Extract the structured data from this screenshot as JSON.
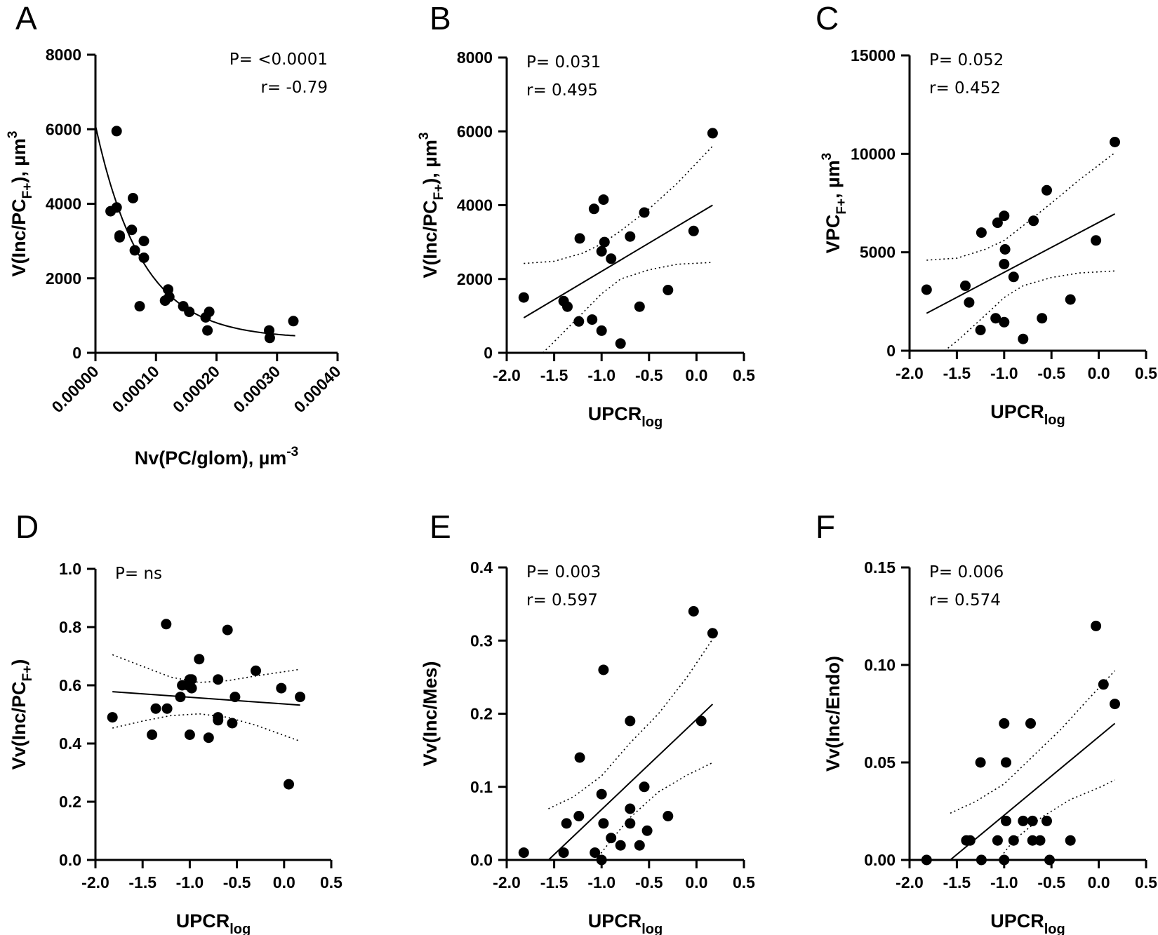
{
  "chart_data": [
    {
      "panel": "A",
      "type": "scatter",
      "xlabel": "Nv(PC/glom), µm",
      "xlabel_sup": "-3",
      "ylabel": "V(Inc/PC",
      "ylabel_sub": "F+",
      "ylabel_tail": "), µm",
      "ylabel_sup": "3",
      "xlim": [
        0,
        0.0004
      ],
      "ylim": [
        0,
        8000
      ],
      "xticks": [
        0,
        0.0001,
        0.0002,
        0.0003,
        0.0004
      ],
      "xtick_labels": [
        "0.00000",
        "0.00010",
        "0.00020",
        "0.00030",
        "0.00040"
      ],
      "yticks": [
        0,
        2000,
        4000,
        6000,
        8000
      ],
      "ytick_labels": [
        "0",
        "2000",
        "4000",
        "6000",
        "8000"
      ],
      "stats": [
        "P= <0.0001",
        "r= -0.79"
      ],
      "stats_align": "right",
      "points": [
        [
          3.5e-05,
          5950
        ],
        [
          2.5e-05,
          3800
        ],
        [
          3.5e-05,
          3900
        ],
        [
          4e-05,
          3150
        ],
        [
          4e-05,
          3100
        ],
        [
          6.2e-05,
          4150
        ],
        [
          6e-05,
          3300
        ],
        [
          6.5e-05,
          2750
        ],
        [
          8e-05,
          3000
        ],
        [
          8e-05,
          2550
        ],
        [
          7.3e-05,
          1250
        ],
        [
          0.00012,
          1700
        ],
        [
          0.000115,
          1400
        ],
        [
          0.000122,
          1500
        ],
        [
          0.000145,
          1250
        ],
        [
          0.000155,
          1100
        ],
        [
          0.000182,
          950
        ],
        [
          0.000188,
          1100
        ],
        [
          0.000185,
          600
        ],
        [
          0.000287,
          600
        ],
        [
          0.000288,
          400
        ],
        [
          0.000327,
          850
        ]
      ],
      "fit": {
        "kind": "exp_decay",
        "y0": 6100,
        "plateau": 380,
        "k": 13000,
        "x_end": 0.00033
      }
    },
    {
      "panel": "B",
      "type": "scatter",
      "xlabel": "UPCR",
      "xlabel_sub": "log",
      "ylabel": "V(Inc/PC",
      "ylabel_sub": "F+",
      "ylabel_tail": "), µm",
      "ylabel_sup": "3",
      "xlim": [
        -2.0,
        0.5
      ],
      "ylim": [
        0,
        8000
      ],
      "xticks": [
        -2.0,
        -1.5,
        -1.0,
        -0.5,
        0.0,
        0.5
      ],
      "xtick_labels": [
        "-2.0",
        "-1.5",
        "-1.0",
        "-0.5",
        "0.0",
        "0.5"
      ],
      "yticks": [
        0,
        2000,
        4000,
        6000,
        8000
      ],
      "ytick_labels": [
        "0",
        "2000",
        "4000",
        "6000",
        "8000"
      ],
      "stats": [
        "P= 0.031",
        "r= 0.495"
      ],
      "stats_align": "left",
      "points": [
        [
          -1.82,
          1500
        ],
        [
          -1.4,
          1400
        ],
        [
          -1.36,
          1250
        ],
        [
          -1.23,
          3100
        ],
        [
          -1.24,
          850
        ],
        [
          -1.08,
          3900
        ],
        [
          -1.1,
          900
        ],
        [
          -1.0,
          2750
        ],
        [
          -0.98,
          4150
        ],
        [
          -0.97,
          3000
        ],
        [
          -1.0,
          600
        ],
        [
          -0.9,
          2550
        ],
        [
          -0.8,
          250
        ],
        [
          -0.7,
          3150
        ],
        [
          -0.6,
          1250
        ],
        [
          -0.55,
          3800
        ],
        [
          -0.3,
          1700
        ],
        [
          -0.03,
          3300
        ],
        [
          0.17,
          5950
        ]
      ],
      "fit": {
        "x": [
          -1.82,
          0.17
        ],
        "y": [
          950,
          4000
        ]
      },
      "ci_upper": [
        [
          -1.82,
          2420
        ],
        [
          -1.5,
          2480
        ],
        [
          -1.2,
          2700
        ],
        [
          -1.0,
          2950
        ],
        [
          -0.8,
          3300
        ],
        [
          -0.5,
          3900
        ],
        [
          -0.2,
          4600
        ],
        [
          0.17,
          5600
        ]
      ],
      "ci_lower": [
        [
          -1.62,
          0
        ],
        [
          -1.5,
          300
        ],
        [
          -1.2,
          1080
        ],
        [
          -1.0,
          1600
        ],
        [
          -0.8,
          2000
        ],
        [
          -0.5,
          2250
        ],
        [
          -0.2,
          2400
        ],
        [
          0.17,
          2450
        ]
      ]
    },
    {
      "panel": "C",
      "type": "scatter",
      "xlabel": "UPCR",
      "xlabel_sub": "log",
      "ylabel": "VPC",
      "ylabel_sub": "F+",
      "ylabel_tail": ", µm",
      "ylabel_sup": "3",
      "xlim": [
        -2.0,
        0.5
      ],
      "ylim": [
        0,
        15000
      ],
      "xticks": [
        -2.0,
        -1.5,
        -1.0,
        -0.5,
        0.0,
        0.5
      ],
      "xtick_labels": [
        "-2.0",
        "-1.5",
        "-1.0",
        "-0.5",
        "0.0",
        "0.5"
      ],
      "yticks": [
        0,
        5000,
        10000,
        15000
      ],
      "ytick_labels": [
        "0",
        "5000",
        "10000",
        "15000"
      ],
      "stats": [
        "P= 0.052",
        "r= 0.452"
      ],
      "stats_align": "left",
      "points": [
        [
          -1.82,
          3100
        ],
        [
          -1.41,
          3300
        ],
        [
          -1.37,
          2450
        ],
        [
          -1.24,
          6000
        ],
        [
          -1.25,
          1050
        ],
        [
          -1.07,
          6500
        ],
        [
          -1.09,
          1650
        ],
        [
          -1.0,
          6850
        ],
        [
          -0.99,
          5150
        ],
        [
          -1.0,
          4400
        ],
        [
          -1.0,
          1450
        ],
        [
          -0.9,
          3750
        ],
        [
          -0.8,
          600
        ],
        [
          -0.69,
          6600
        ],
        [
          -0.6,
          1650
        ],
        [
          -0.55,
          8150
        ],
        [
          -0.3,
          2600
        ],
        [
          -0.03,
          5600
        ],
        [
          0.17,
          10600
        ]
      ],
      "fit": {
        "x": [
          -1.82,
          0.17
        ],
        "y": [
          1900,
          6950
        ]
      },
      "ci_upper": [
        [
          -1.82,
          4600
        ],
        [
          -1.5,
          4700
        ],
        [
          -1.2,
          5150
        ],
        [
          -1.0,
          5600
        ],
        [
          -0.8,
          6350
        ],
        [
          -0.5,
          7500
        ],
        [
          -0.2,
          8700
        ],
        [
          0.17,
          10050
        ]
      ],
      "ci_lower": [
        [
          -1.63,
          0
        ],
        [
          -1.5,
          480
        ],
        [
          -1.2,
          1800
        ],
        [
          -1.0,
          2700
        ],
        [
          -0.8,
          3300
        ],
        [
          -0.5,
          3720
        ],
        [
          -0.2,
          3950
        ],
        [
          0.17,
          4050
        ]
      ]
    },
    {
      "panel": "D",
      "type": "scatter",
      "xlabel": "UPCR",
      "xlabel_sub": "log",
      "ylabel": "Vv(Inc/PC",
      "ylabel_sub": "F+",
      "ylabel_tail": ")",
      "ylabel_sup": "",
      "xlim": [
        -2.0,
        0.5
      ],
      "ylim": [
        0,
        1.0
      ],
      "xticks": [
        -2.0,
        -1.5,
        -1.0,
        -0.5,
        0.0,
        0.5
      ],
      "xtick_labels": [
        "-2.0",
        "-1.5",
        "-1.0",
        "-0.5",
        "0.0",
        "0.5"
      ],
      "yticks": [
        0,
        0.2,
        0.4,
        0.6,
        0.8,
        1.0
      ],
      "ytick_labels": [
        "0.0",
        "0.2",
        "0.4",
        "0.6",
        "0.8",
        "1.0"
      ],
      "stats": [
        "P= ns"
      ],
      "stats_align": "left",
      "points": [
        [
          -1.82,
          0.49
        ],
        [
          -1.4,
          0.43
        ],
        [
          -1.36,
          0.52
        ],
        [
          -1.25,
          0.81
        ],
        [
          -1.24,
          0.52
        ],
        [
          -1.1,
          0.56
        ],
        [
          -1.08,
          0.6
        ],
        [
          -1.02,
          0.6
        ],
        [
          -1.0,
          0.62
        ],
        [
          -0.98,
          0.62
        ],
        [
          -0.98,
          0.59
        ],
        [
          -1.0,
          0.43
        ],
        [
          -0.9,
          0.69
        ],
        [
          -0.8,
          0.42
        ],
        [
          -0.7,
          0.62
        ],
        [
          -0.7,
          0.49
        ],
        [
          -0.7,
          0.48
        ],
        [
          -0.6,
          0.79
        ],
        [
          -0.55,
          0.47
        ],
        [
          -0.52,
          0.56
        ],
        [
          -0.3,
          0.65
        ],
        [
          -0.03,
          0.59
        ],
        [
          0.05,
          0.26
        ],
        [
          0.17,
          0.56
        ]
      ],
      "fit": {
        "x": [
          -1.82,
          0.17
        ],
        "y": [
          0.578,
          0.532
        ]
      },
      "ci_upper": [
        [
          -1.82,
          0.705
        ],
        [
          -1.5,
          0.665
        ],
        [
          -1.2,
          0.628
        ],
        [
          -0.9,
          0.61
        ],
        [
          -0.6,
          0.616
        ],
        [
          -0.3,
          0.632
        ],
        [
          0.17,
          0.655
        ]
      ],
      "ci_lower": [
        [
          -1.82,
          0.453
        ],
        [
          -1.5,
          0.477
        ],
        [
          -1.2,
          0.496
        ],
        [
          -0.9,
          0.502
        ],
        [
          -0.6,
          0.49
        ],
        [
          -0.3,
          0.463
        ],
        [
          0.17,
          0.408
        ]
      ]
    },
    {
      "panel": "E",
      "type": "scatter",
      "xlabel": "UPCR",
      "xlabel_sub": "log",
      "ylabel": "Vv(Inc/Mes)",
      "ylabel_sub": "",
      "ylabel_tail": "",
      "ylabel_sup": "",
      "xlim": [
        -2.0,
        0.5
      ],
      "ylim": [
        0,
        0.4
      ],
      "xticks": [
        -2.0,
        -1.5,
        -1.0,
        -0.5,
        0.0,
        0.5
      ],
      "xtick_labels": [
        "-2.0",
        "-1.5",
        "-1.0",
        "-0.5",
        "0.0",
        "0.5"
      ],
      "yticks": [
        0,
        0.1,
        0.2,
        0.3,
        0.4
      ],
      "ytick_labels": [
        "0.0",
        "0.1",
        "0.2",
        "0.3",
        "0.4"
      ],
      "stats": [
        "P= 0.003",
        "r= 0.597"
      ],
      "stats_align": "left",
      "points": [
        [
          -1.82,
          0.01
        ],
        [
          -1.4,
          0.01
        ],
        [
          -1.37,
          0.05
        ],
        [
          -1.24,
          0.06
        ],
        [
          -1.23,
          0.14
        ],
        [
          -1.07,
          0.01
        ],
        [
          -1.0,
          0.09
        ],
        [
          -0.98,
          0.26
        ],
        [
          -0.98,
          0.05
        ],
        [
          -1.0,
          0.0
        ],
        [
          -0.9,
          0.03
        ],
        [
          -0.8,
          0.02
        ],
        [
          -0.7,
          0.07
        ],
        [
          -0.7,
          0.05
        ],
        [
          -0.7,
          0.19
        ],
        [
          -0.6,
          0.02
        ],
        [
          -0.55,
          0.1
        ],
        [
          -0.52,
          0.04
        ],
        [
          -0.3,
          0.06
        ],
        [
          -0.03,
          0.34
        ],
        [
          0.05,
          0.19
        ],
        [
          0.17,
          0.31
        ]
      ],
      "fit": {
        "x": [
          -1.56,
          0.17
        ],
        "y": [
          0.0,
          0.213
        ]
      },
      "ci_upper": [
        [
          -1.56,
          0.07
        ],
        [
          -1.3,
          0.086
        ],
        [
          -1.0,
          0.115
        ],
        [
          -0.7,
          0.16
        ],
        [
          -0.4,
          0.2
        ],
        [
          -0.1,
          0.25
        ],
        [
          0.17,
          0.302
        ]
      ],
      "ci_lower": [
        [
          -1.06,
          0.0
        ],
        [
          -0.9,
          0.027
        ],
        [
          -0.7,
          0.058
        ],
        [
          -0.4,
          0.093
        ],
        [
          -0.1,
          0.116
        ],
        [
          0.17,
          0.133
        ]
      ]
    },
    {
      "panel": "F",
      "type": "scatter",
      "xlabel": "UPCR",
      "xlabel_sub": "log",
      "ylabel": "Vv(Inc/Endo)",
      "ylabel_sub": "",
      "ylabel_tail": "",
      "ylabel_sup": "",
      "xlim": [
        -2.0,
        0.5
      ],
      "ylim": [
        0,
        0.15
      ],
      "xticks": [
        -2.0,
        -1.5,
        -1.0,
        -0.5,
        0.0,
        0.5
      ],
      "xtick_labels": [
        "-2.0",
        "-1.5",
        "-1.0",
        "-0.5",
        "0.0",
        "0.5"
      ],
      "yticks": [
        0,
        0.05,
        0.1,
        0.15
      ],
      "ytick_labels": [
        "0.00",
        "0.05",
        "0.10",
        "0.15"
      ],
      "stats": [
        "P= 0.006",
        "r= 0.574"
      ],
      "stats_align": "left",
      "points": [
        [
          -1.82,
          0.0
        ],
        [
          -1.4,
          0.01
        ],
        [
          -1.36,
          0.01
        ],
        [
          -1.25,
          0.05
        ],
        [
          -1.24,
          0.0
        ],
        [
          -1.07,
          0.01
        ],
        [
          -1.0,
          0.07
        ],
        [
          -0.98,
          0.05
        ],
        [
          -0.98,
          0.02
        ],
        [
          -1.0,
          0.0
        ],
        [
          -0.9,
          0.01
        ],
        [
          -0.8,
          0.02
        ],
        [
          -0.72,
          0.07
        ],
        [
          -0.7,
          0.02
        ],
        [
          -0.7,
          0.01
        ],
        [
          -0.62,
          0.01
        ],
        [
          -0.55,
          0.02
        ],
        [
          -0.52,
          0.0
        ],
        [
          -0.3,
          0.01
        ],
        [
          -0.03,
          0.12
        ],
        [
          0.05,
          0.09
        ],
        [
          0.17,
          0.08
        ]
      ],
      "fit": {
        "x": [
          -1.57,
          0.17
        ],
        "y": [
          0.0,
          0.07
        ]
      },
      "ci_upper": [
        [
          -1.57,
          0.024
        ],
        [
          -1.3,
          0.03
        ],
        [
          -1.0,
          0.039
        ],
        [
          -0.7,
          0.053
        ],
        [
          -0.4,
          0.067
        ],
        [
          -0.1,
          0.083
        ],
        [
          0.17,
          0.097
        ]
      ],
      "ci_lower": [
        [
          -1.06,
          0.0
        ],
        [
          -0.9,
          0.01
        ],
        [
          -0.6,
          0.022
        ],
        [
          -0.3,
          0.031
        ],
        [
          0.0,
          0.037
        ],
        [
          0.17,
          0.041
        ]
      ]
    }
  ]
}
